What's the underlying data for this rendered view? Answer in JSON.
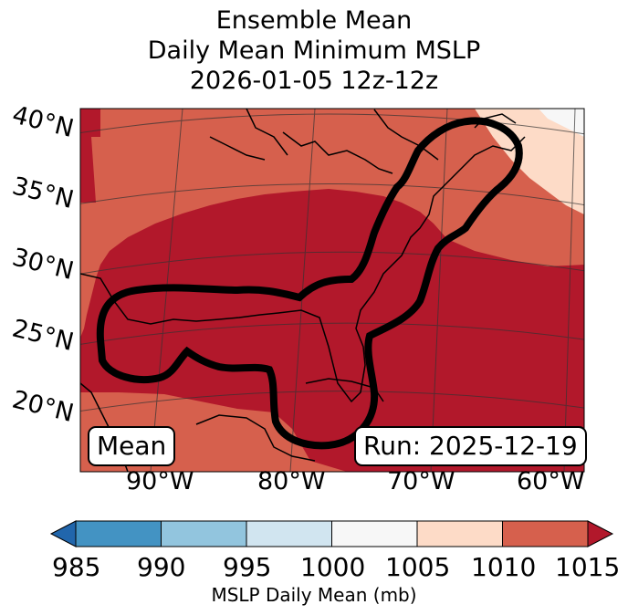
{
  "title": {
    "line1": "Ensemble Mean",
    "line2": "Daily Mean Minimum MSLP",
    "line3": "2026-01-05 12z-12z"
  },
  "map": {
    "lat_labels": [
      "40°N",
      "35°N",
      "30°N",
      "25°N",
      "20°N"
    ],
    "lon_labels": [
      "90°W",
      "80°W",
      "70°W",
      "60°W"
    ],
    "mean_label": "Mean",
    "run_label": "Run: 2025-12-19",
    "fill_colors": {
      "1015": "#b2182b",
      "1010": "#d6604d",
      "1005": "#fddbc7",
      "1000": "#f7f7f7"
    }
  },
  "colorbar": {
    "label": "MSLP Daily Mean (mb)",
    "ticks": [
      "985",
      "990",
      "995",
      "1000",
      "1005",
      "1010",
      "1015"
    ],
    "colors": [
      "#2166ac",
      "#4393c3",
      "#92c5de",
      "#d1e5f0",
      "#f7f7f7",
      "#fddbc7",
      "#d6604d",
      "#b2182b"
    ]
  }
}
